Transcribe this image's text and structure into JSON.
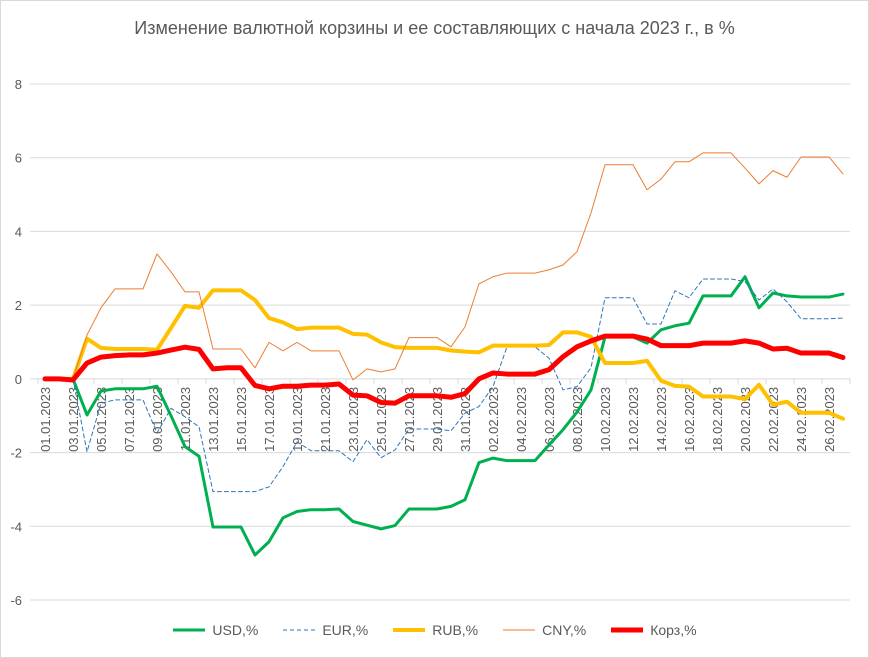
{
  "chart_data": {
    "type": "line",
    "title": "Изменение валютной корзины и ее составляющих с начала 2023 г., в %",
    "xlabel": "",
    "ylabel": "",
    "ylim": [
      -6,
      8
    ],
    "y_ticks": [
      "8",
      "6",
      "4",
      "2",
      "0",
      "-2",
      "-4",
      "-6"
    ],
    "y_tick_values": [
      8,
      6,
      4,
      2,
      0,
      -2,
      -4,
      -6
    ],
    "x_start_date": "01.01.2023",
    "x_days": 58,
    "x_tick_labels": [
      "01.01.2023",
      "03.01.2023",
      "05.01.2023",
      "07.01.2023",
      "09.01.2023",
      "11.01.2023",
      "13.01.2023",
      "15.01.2023",
      "17.01.2023",
      "19.01.2023",
      "21.01.2023",
      "23.01.2023",
      "25.01.2023",
      "27.01.2023",
      "29.01.2023",
      "31.01.2023",
      "02.02.2023",
      "04.02.2023",
      "06.02.2023",
      "08.02.2023",
      "10.02.2023",
      "12.02.2023",
      "14.02.2023",
      "16.02.2023",
      "18.02.2023",
      "20.02.2023",
      "22.02.2023",
      "24.02.2023",
      "26.02.2023"
    ],
    "grid": true,
    "legend_position": "bottom",
    "series": [
      {
        "name": "USD,%",
        "color": "#00b050",
        "width": 3,
        "dash": "",
        "values": [
          0,
          0,
          0,
          -0.98,
          -0.33,
          -0.27,
          -0.27,
          -0.27,
          -0.2,
          -1.0,
          -1.84,
          -2.1,
          -4.02,
          -4.02,
          -4.02,
          -4.78,
          -4.42,
          -3.77,
          -3.6,
          -3.55,
          -3.55,
          -3.53,
          -3.87,
          -3.97,
          -4.07,
          -3.98,
          -3.53,
          -3.53,
          -3.53,
          -3.46,
          -3.28,
          -2.27,
          -2.15,
          -2.22,
          -2.22,
          -2.22,
          -1.79,
          -1.38,
          -0.9,
          -0.3,
          1.14,
          1.14,
          1.14,
          0.97,
          1.33,
          1.44,
          1.51,
          2.25,
          2.25,
          2.25,
          2.77,
          1.93,
          2.33,
          2.25,
          2.22,
          2.22,
          2.22,
          2.3
        ]
      },
      {
        "name": "EUR,%",
        "color": "#2e75b6",
        "width": 1,
        "dash": "4,3",
        "values": [
          0,
          0,
          0,
          -1.98,
          -0.66,
          -0.57,
          -0.57,
          -0.57,
          -1.47,
          -0.8,
          -1.03,
          -1.3,
          -3.06,
          -3.06,
          -3.06,
          -3.06,
          -2.93,
          -2.38,
          -1.71,
          -1.95,
          -1.95,
          -1.95,
          -2.25,
          -1.65,
          -2.14,
          -1.93,
          -1.36,
          -1.36,
          -1.36,
          -1.41,
          -0.93,
          -0.75,
          -0.21,
          0.87,
          0.87,
          0.87,
          0.56,
          -0.3,
          -0.21,
          0.3,
          2.2,
          2.2,
          2.2,
          1.49,
          1.49,
          2.39,
          2.2,
          2.71,
          2.71,
          2.71,
          2.64,
          2.14,
          2.44,
          2.09,
          1.63,
          1.63,
          1.63,
          1.65
        ]
      },
      {
        "name": "RUB,%",
        "color": "#ffc000",
        "width": 4,
        "dash": "",
        "values": [
          0,
          0,
          0,
          1.09,
          0.84,
          0.81,
          0.81,
          0.81,
          0.79,
          1.38,
          1.98,
          1.93,
          2.4,
          2.4,
          2.4,
          2.14,
          1.65,
          1.53,
          1.35,
          1.39,
          1.39,
          1.39,
          1.22,
          1.2,
          0.99,
          0.86,
          0.84,
          0.84,
          0.84,
          0.77,
          0.74,
          0.72,
          0.9,
          0.9,
          0.9,
          0.9,
          0.92,
          1.26,
          1.26,
          1.14,
          0.43,
          0.43,
          0.43,
          0.49,
          -0.05,
          -0.19,
          -0.21,
          -0.48,
          -0.48,
          -0.48,
          -0.55,
          -0.16,
          -0.7,
          -0.62,
          -0.92,
          -0.92,
          -0.92,
          -1.08
        ]
      },
      {
        "name": "CNY,%",
        "color": "#ed7d31",
        "width": 1,
        "dash": "",
        "values": [
          0,
          0,
          0,
          1.19,
          1.93,
          2.44,
          2.44,
          2.44,
          3.39,
          2.9,
          2.36,
          2.36,
          0.81,
          0.81,
          0.81,
          0.3,
          0.99,
          0.76,
          0.99,
          0.76,
          0.76,
          0.76,
          -0.03,
          0.27,
          0.19,
          0.27,
          1.12,
          1.12,
          1.12,
          0.87,
          1.41,
          2.58,
          2.77,
          2.87,
          2.87,
          2.87,
          2.96,
          3.09,
          3.45,
          4.5,
          5.81,
          5.81,
          5.81,
          5.13,
          5.42,
          5.89,
          5.89,
          6.13,
          6.13,
          6.13,
          5.72,
          5.29,
          5.65,
          5.47,
          6.02,
          6.02,
          6.02,
          5.56
        ]
      },
      {
        "name": "Корз,%",
        "color": "#ff0000",
        "width": 5,
        "dash": "",
        "values": [
          0,
          0,
          -0.03,
          0.43,
          0.59,
          0.63,
          0.65,
          0.65,
          0.7,
          0.78,
          0.86,
          0.8,
          0.27,
          0.3,
          0.3,
          -0.18,
          -0.27,
          -0.2,
          -0.2,
          -0.17,
          -0.17,
          -0.14,
          -0.44,
          -0.46,
          -0.64,
          -0.66,
          -0.46,
          -0.46,
          -0.46,
          -0.5,
          -0.4,
          0.0,
          0.16,
          0.13,
          0.13,
          0.13,
          0.25,
          0.6,
          0.87,
          1.03,
          1.16,
          1.16,
          1.16,
          1.08,
          0.9,
          0.9,
          0.9,
          0.97,
          0.97,
          0.97,
          1.03,
          0.97,
          0.81,
          0.83,
          0.7,
          0.7,
          0.7,
          0.58
        ]
      }
    ]
  }
}
